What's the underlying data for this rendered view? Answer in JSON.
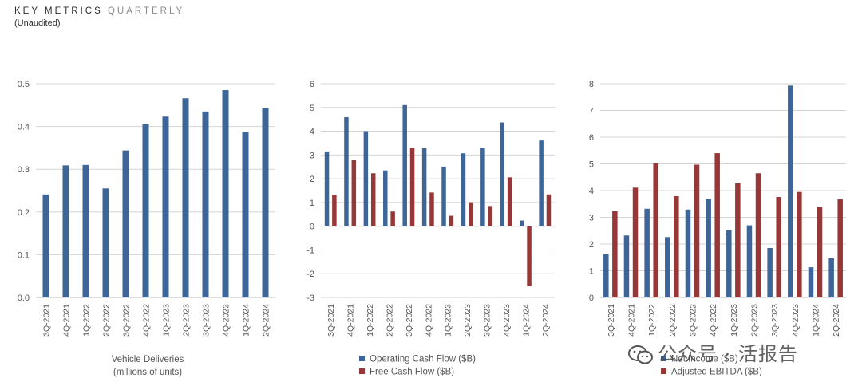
{
  "header": {
    "title_bold": "KEY METRICS",
    "title_light": "QUARTERLY",
    "subtitle": "(Unaudited)"
  },
  "watermark": {
    "text": "公众号 · 活报告"
  },
  "colors": {
    "blue": "#3d6597",
    "red": "#963838",
    "grid": "#d4d4d4",
    "axis_text": "#555555"
  },
  "chart_data": [
    {
      "type": "bar",
      "id": "deliveries",
      "categories": [
        "3Q-2021",
        "4Q-2021",
        "1Q-2022",
        "2Q-2022",
        "3Q-2022",
        "4Q-2022",
        "1Q-2023",
        "2Q-2023",
        "3Q-2023",
        "4Q-2023",
        "1Q-2024",
        "2Q-2024"
      ],
      "series": [
        {
          "name": "Vehicle Deliveries",
          "color": "#3d6597",
          "values": [
            0.241,
            0.309,
            0.31,
            0.255,
            0.344,
            0.405,
            0.423,
            0.466,
            0.435,
            0.485,
            0.387,
            0.444
          ]
        }
      ],
      "ylim": [
        0,
        0.5
      ],
      "yticks": [
        0.0,
        0.1,
        0.2,
        0.3,
        0.4,
        0.5
      ],
      "ytick_labels": [
        "0.0",
        "0.1",
        "0.2",
        "0.3",
        "0.4",
        "0.5"
      ],
      "grid": true,
      "xlabel_lines": [
        "Vehicle Deliveries",
        "(millions of units)"
      ],
      "legend": []
    },
    {
      "type": "bar",
      "id": "cashflow",
      "categories": [
        "3Q-2021",
        "4Q-2021",
        "1Q-2022",
        "2Q-2022",
        "3Q-2022",
        "4Q-2022",
        "1Q-2023",
        "2Q-2023",
        "3Q-2023",
        "4Q-2023",
        "1Q-2024",
        "2Q-2024"
      ],
      "series": [
        {
          "name": "Operating Cash Flow ($B)",
          "color": "#3d6597",
          "values": [
            3.15,
            4.59,
            4.0,
            2.35,
            5.1,
            3.28,
            2.51,
            3.07,
            3.31,
            4.37,
            0.24,
            3.61
          ]
        },
        {
          "name": "Free Cash Flow ($B)",
          "color": "#963838",
          "values": [
            1.33,
            2.78,
            2.23,
            0.62,
            3.3,
            1.42,
            0.44,
            1.01,
            0.85,
            2.06,
            -2.53,
            1.34
          ]
        }
      ],
      "ylim": [
        -3,
        6
      ],
      "yticks": [
        -3,
        -2,
        -1,
        0,
        1,
        2,
        3,
        4,
        5,
        6
      ],
      "ytick_labels": [
        "-3",
        "-2",
        "-1",
        "0",
        "1",
        "2",
        "3",
        "4",
        "5",
        "6"
      ],
      "grid": true,
      "xlabel_lines": [],
      "legend": [
        "Operating Cash Flow ($B)",
        "Free Cash Flow ($B)"
      ]
    },
    {
      "type": "bar",
      "id": "income",
      "categories": [
        "3Q-2021",
        "4Q-2021",
        "1Q-2022",
        "2Q-2022",
        "3Q-2022",
        "4Q-2022",
        "1Q-2023",
        "2Q-2023",
        "3Q-2023",
        "4Q-2023",
        "1Q-2024",
        "2Q-2024"
      ],
      "series": [
        {
          "name": "Net Income ($B)",
          "color": "#3d6597",
          "values": [
            1.62,
            2.32,
            3.32,
            2.26,
            3.29,
            3.69,
            2.51,
            2.7,
            1.85,
            7.93,
            1.13,
            1.47
          ]
        },
        {
          "name": "Adjusted EBITDA ($B)",
          "color": "#963838",
          "values": [
            3.23,
            4.11,
            5.02,
            3.79,
            4.97,
            5.4,
            4.27,
            4.65,
            3.76,
            3.95,
            3.38,
            3.67
          ]
        }
      ],
      "ylim": [
        0,
        8
      ],
      "yticks": [
        0,
        1,
        2,
        3,
        4,
        5,
        6,
        7,
        8
      ],
      "ytick_labels": [
        "0",
        "1",
        "2",
        "3",
        "4",
        "5",
        "6",
        "7",
        "8"
      ],
      "grid": true,
      "xlabel_lines": [],
      "legend": [
        "Net Income ($B)",
        "Adjusted EBITDA ($B)"
      ]
    }
  ]
}
